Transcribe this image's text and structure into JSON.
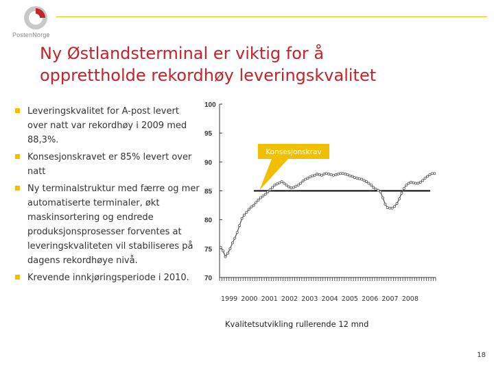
{
  "header": {
    "logo_text": "PostenNorge",
    "title_line1": "Ny Østlandsterminal er viktig for å",
    "title_line2": "opprettholde rekordhøy leveringskvalitet"
  },
  "bullets": [
    "Leveringskvalitet for A-post levert over natt var rekordhøy i 2009 med 88,3%.",
    "Konsesjonskravet er 85% levert over natt",
    "Ny terminalstruktur med færre og mer automatiserte terminaler, økt maskinsortering og endrede produksjonsprosesser forventes at leveringskvaliteten vil stabiliseres på dagens rekordhøye nivå.",
    "Krevende innkjøringsperiode i 2010."
  ],
  "colors": {
    "title": "#c4232b",
    "accent": "#f0c000",
    "series": "#555555",
    "requirement_line": "#000000"
  },
  "chart_data": {
    "type": "line",
    "title": "",
    "xlabel": "",
    "ylabel": "",
    "caption": "Kvalitetsutvikling rullerende 12 mnd",
    "ylim": [
      70,
      100
    ],
    "yticks": [
      70,
      75,
      80,
      85,
      90,
      95,
      100
    ],
    "x_tick_labels": [
      "1999",
      "2000",
      "2001",
      "2002",
      "2003",
      "2004",
      "2005",
      "2006",
      "2007",
      "2008"
    ],
    "grid": false,
    "requirement_value": 85,
    "annotation": "Konsesjonskrav",
    "series": [
      {
        "values": [
          75.2,
          74.6,
          73.6,
          74.2,
          75.0,
          76.0,
          76.8,
          77.8,
          79.0,
          80.2,
          80.8,
          81.3,
          81.8,
          82.2,
          82.5,
          83.0,
          83.4,
          83.8,
          84.1,
          84.4,
          84.8,
          85.2,
          85.6,
          86.0,
          86.2,
          86.4,
          86.6,
          86.3,
          86.0,
          85.7,
          85.5,
          85.6,
          85.8,
          86.0,
          86.3,
          86.7,
          87.0,
          87.2,
          87.4,
          87.6,
          87.7,
          87.9,
          87.8,
          87.7,
          87.9,
          88.0,
          87.9,
          87.8,
          87.7,
          87.8,
          87.9,
          88.0,
          88.0,
          87.9,
          87.8,
          87.6,
          87.5,
          87.3,
          87.2,
          87.1,
          87.0,
          86.8,
          86.6,
          86.3,
          86.0,
          85.6,
          85.3,
          85.1,
          84.8,
          83.8,
          82.7,
          82.1,
          82.0,
          82.0,
          82.3,
          82.8,
          83.6,
          84.6,
          85.4,
          86.0,
          86.3,
          86.5,
          86.4,
          86.3,
          86.3,
          86.5,
          86.8,
          87.2,
          87.5,
          87.8,
          88.0,
          88.0
        ]
      }
    ]
  },
  "page_number": "18"
}
